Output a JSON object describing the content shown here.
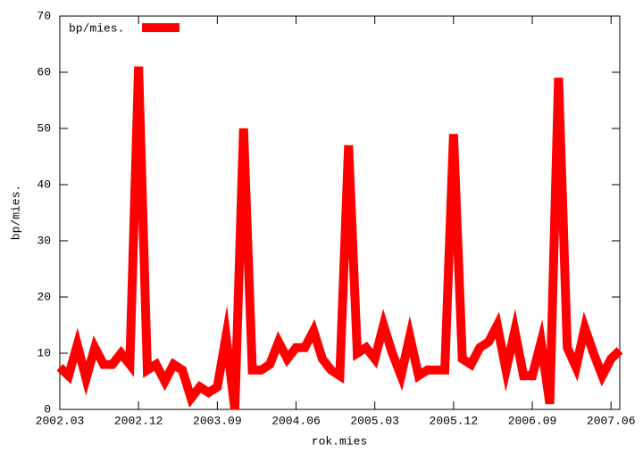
{
  "chart_data": {
    "type": "line",
    "x_label": "rok.mies",
    "y_label": "bp/mies.",
    "categories": [
      "2002.03",
      null,
      null,
      null,
      null,
      null,
      null,
      null,
      null,
      "2002.12",
      null,
      null,
      null,
      null,
      null,
      null,
      null,
      null,
      "2003.09",
      null,
      null,
      null,
      null,
      null,
      null,
      null,
      null,
      "2004.06",
      null,
      null,
      null,
      null,
      null,
      null,
      null,
      null,
      "2005.03",
      null,
      null,
      null,
      null,
      null,
      null,
      null,
      null,
      "2005.12",
      null,
      null,
      null,
      null,
      null,
      null,
      null,
      null,
      "2006.09",
      null,
      null,
      null,
      null,
      null,
      null,
      null,
      null,
      "2007.06",
      null
    ],
    "series": [
      {
        "name": "bp/mies.",
        "color": "#ff0000",
        "values": [
          7.5,
          6,
          11.5,
          5.5,
          11,
          8,
          8,
          10,
          8,
          61,
          7,
          8,
          5,
          8,
          7,
          2,
          4,
          3,
          4,
          13,
          0,
          50,
          7,
          7,
          8,
          12,
          9,
          11,
          11,
          14,
          9,
          7,
          6,
          47,
          10,
          11,
          9,
          15,
          10,
          6,
          13,
          6,
          7,
          7,
          7,
          49,
          9,
          8,
          11,
          12,
          15,
          7,
          14,
          6,
          6,
          12,
          1,
          59,
          11,
          7.5,
          14.5,
          10,
          6,
          9,
          10.5
        ]
      }
    ],
    "ylim": [
      0,
      70
    ],
    "yticks": [
      0,
      10,
      20,
      30,
      40,
      50,
      60,
      70
    ],
    "legend": "top-left"
  }
}
